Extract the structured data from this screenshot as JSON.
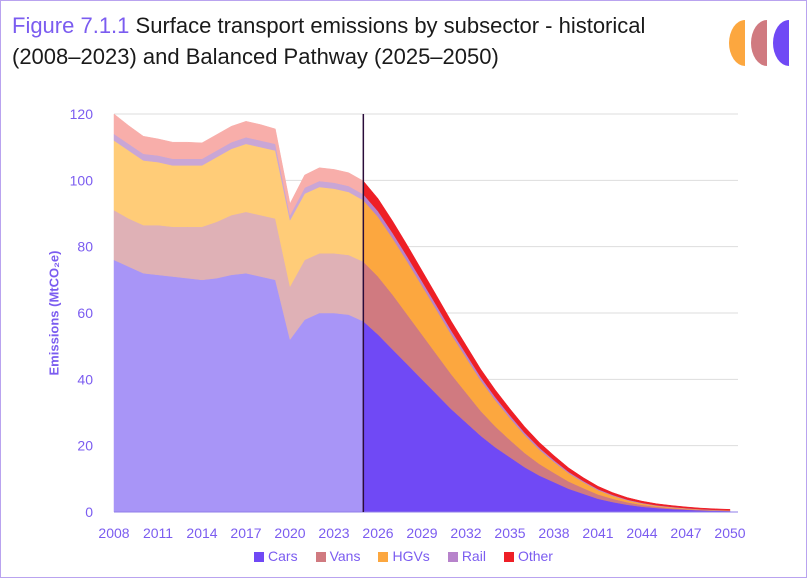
{
  "title": {
    "figure_label": "Figure 7.1.1",
    "text": "Surface transport emissions by subsector - historical (2008–2023) and Balanced Pathway (2025–2050)"
  },
  "chart_data": {
    "type": "area",
    "stacked": true,
    "ylabel": "Emissions (MtCO₂e)",
    "ylim": [
      0,
      120
    ],
    "yticks": [
      0,
      20,
      40,
      60,
      80,
      100,
      120
    ],
    "xlim": [
      2008,
      2050
    ],
    "xticks": [
      "2008",
      "2011",
      "2014",
      "2017",
      "2020",
      "2023",
      "2026",
      "2029",
      "2032",
      "2035",
      "2038",
      "2041",
      "2044",
      "2047",
      "2050"
    ],
    "grid": true,
    "divider_year": 2025,
    "legend_position": "bottom",
    "series": [
      {
        "name": "Cars",
        "color_historical": "#a895f7",
        "color_projected": "#7049f5",
        "values": [
          76,
          74,
          72,
          71.5,
          71,
          70.5,
          70,
          70.5,
          71.5,
          72,
          71,
          70,
          52,
          58,
          60,
          60,
          59.5,
          57.5,
          53.5,
          49,
          44.5,
          40,
          35.5,
          31,
          27,
          23,
          19.5,
          16.5,
          13.5,
          11,
          9,
          7,
          5.5,
          4,
          3,
          2.2,
          1.6,
          1.2,
          0.9,
          0.7,
          0.5,
          0.4,
          0.3
        ]
      },
      {
        "name": "Vans",
        "color_historical": "#dfb1b6",
        "color_projected": "#d07a80",
        "values": [
          15,
          14.5,
          14.5,
          15,
          15,
          15.5,
          16,
          17,
          18,
          18.5,
          18.5,
          18.5,
          16,
          18,
          18,
          18,
          18,
          18,
          17.5,
          16.5,
          15,
          13.5,
          12,
          10.5,
          9,
          7.5,
          6.3,
          5.2,
          4.3,
          3.5,
          2.8,
          2.2,
          1.7,
          1.3,
          1,
          0.75,
          0.55,
          0.4,
          0.3,
          0.2,
          0.15,
          0.1,
          0.08
        ]
      },
      {
        "name": "HGVs",
        "color_historical": "#ffcc78",
        "color_projected": "#fca73f",
        "values": [
          21,
          20.5,
          19.5,
          19,
          18.5,
          18.5,
          18.5,
          19.5,
          20,
          20.5,
          20.5,
          20.5,
          20,
          20,
          20,
          19.5,
          19,
          18.5,
          18,
          17,
          16,
          14.7,
          13.4,
          12,
          10.6,
          9.2,
          7.9,
          6.6,
          5.4,
          4.3,
          3.3,
          2.5,
          1.8,
          1.3,
          0.9,
          0.6,
          0.45,
          0.3,
          0.25,
          0.18,
          0.13,
          0.1,
          0.08
        ]
      },
      {
        "name": "Rail",
        "color_historical": "#c9a6d6",
        "color_projected": "#b783cb",
        "values": [
          2,
          2,
          2,
          2,
          2,
          2,
          2,
          2,
          2,
          2,
          2,
          2,
          1.5,
          1.8,
          1.8,
          1.8,
          1.8,
          1.8,
          1.7,
          1.6,
          1.5,
          1.4,
          1.3,
          1.2,
          1.1,
          1,
          0.9,
          0.8,
          0.7,
          0.6,
          0.5,
          0.4,
          0.35,
          0.3,
          0.25,
          0.2,
          0.17,
          0.14,
          0.12,
          0.1,
          0.08,
          0.06,
          0.05
        ]
      },
      {
        "name": "Other",
        "color_historical": "#f8aeaa",
        "color_projected": "#ee1f26",
        "values": [
          6,
          5.5,
          5.3,
          5,
          5,
          5,
          4.8,
          4.8,
          4.8,
          4.8,
          4.8,
          4.5,
          3.5,
          3.8,
          4,
          4,
          4,
          4,
          3.8,
          3.6,
          3.4,
          3.2,
          3,
          2.8,
          2.6,
          2.4,
          2.2,
          2,
          1.8,
          1.6,
          1.4,
          1.2,
          1,
          0.85,
          0.7,
          0.6,
          0.5,
          0.45,
          0.4,
          0.35,
          0.32,
          0.3,
          0.28
        ]
      }
    ]
  },
  "logo_colors": [
    "#fca73f",
    "#d07a80",
    "#7049f5"
  ],
  "gridline_color": "#dddddd",
  "axis_text_color": "#7b5cf0"
}
